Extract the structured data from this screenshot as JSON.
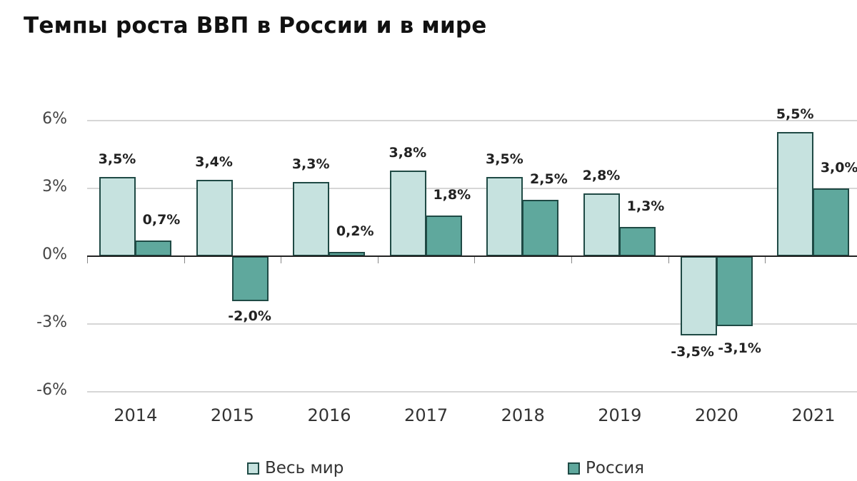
{
  "title": "Темпы роста ВВП в России и в мире",
  "colors": {
    "world": "#c6e2df",
    "russia": "#5fa89d",
    "bar_border": "#1f4a45",
    "grid": "#d6d6d6",
    "zero_axis": "#222222"
  },
  "y_axis": {
    "ticks": [
      "6%",
      "3%",
      "0%",
      "-3%",
      "-6%"
    ],
    "tick_values": [
      6,
      3,
      0,
      -3,
      -6
    ]
  },
  "x_axis": {
    "labels": [
      "2014",
      "2015",
      "2016",
      "2017",
      "2018",
      "2019",
      "2020",
      "2021"
    ]
  },
  "legend": {
    "items": [
      {
        "label": "Весь мир",
        "color": "#c6e2df"
      },
      {
        "label": "Россия",
        "color": "#5fa89d"
      }
    ]
  },
  "labels": {
    "world": [
      "3,5%",
      "3,4%",
      "3,3%",
      "3,8%",
      "3,5%",
      "2,8%",
      "-3,5%",
      "5,5%"
    ],
    "russia": [
      "0,7%",
      "-2,0%",
      "0,2%",
      "1,8%",
      "2,5%",
      "1,3%",
      "-3,1%",
      "3,0%"
    ]
  },
  "chart_data": {
    "type": "bar",
    "title": "Темпы роста ВВП в России и в мире",
    "categories": [
      "2014",
      "2015",
      "2016",
      "2017",
      "2018",
      "2019",
      "2020",
      "2021"
    ],
    "series": [
      {
        "name": "Весь мир",
        "values": [
          3.5,
          3.4,
          3.3,
          3.8,
          3.5,
          2.8,
          -3.5,
          5.5
        ],
        "color": "#c6e2df"
      },
      {
        "name": "Россия",
        "values": [
          0.7,
          -2.0,
          0.2,
          1.8,
          2.5,
          1.3,
          -3.1,
          3.0
        ],
        "color": "#5fa89d"
      }
    ],
    "xlabel": "",
    "ylabel": "",
    "ylim": [
      -6,
      6
    ],
    "yticks": [
      -6,
      -3,
      0,
      3,
      6
    ],
    "ytick_format": "percent",
    "grid": true,
    "data_labels": true,
    "legend_position": "bottom"
  }
}
